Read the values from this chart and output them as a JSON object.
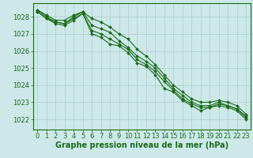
{
  "background_color": "#cce8e8",
  "grid_color": "#aacccc",
  "line_color": "#1a6b1a",
  "marker_color": "#1a6b1a",
  "xlabel": "Graphe pression niveau de la mer (hPa)",
  "xlabel_fontsize": 7,
  "tick_fontsize": 6,
  "ylim": [
    1021.4,
    1028.8
  ],
  "xlim": [
    -0.5,
    23.5
  ],
  "yticks": [
    1022,
    1023,
    1024,
    1025,
    1026,
    1027,
    1028
  ],
  "xticks": [
    0,
    1,
    2,
    3,
    4,
    5,
    6,
    7,
    8,
    9,
    10,
    11,
    12,
    13,
    14,
    15,
    16,
    17,
    18,
    19,
    20,
    21,
    22,
    23
  ],
  "series": [
    [
      1028.3,
      1027.9,
      1027.6,
      1027.5,
      1027.8,
      1028.2,
      1027.0,
      1026.8,
      1026.4,
      1026.3,
      1025.9,
      1025.3,
      1025.1,
      1024.6,
      1023.8,
      1023.6,
      1023.1,
      1022.8,
      1022.5,
      1022.7,
      1022.8,
      1022.7,
      1022.5,
      1022.0
    ],
    [
      1028.3,
      1027.9,
      1027.7,
      1027.6,
      1027.9,
      1028.2,
      1027.2,
      1027.0,
      1026.7,
      1026.4,
      1026.1,
      1025.5,
      1025.2,
      1024.8,
      1024.2,
      1023.7,
      1023.2,
      1022.9,
      1022.7,
      1022.7,
      1022.9,
      1022.8,
      1022.6,
      1022.1
    ],
    [
      1028.4,
      1028.0,
      1027.7,
      1027.6,
      1028.0,
      1028.3,
      1027.5,
      1027.3,
      1027.1,
      1026.6,
      1026.2,
      1025.7,
      1025.4,
      1025.0,
      1024.4,
      1023.8,
      1023.4,
      1023.0,
      1022.8,
      1022.8,
      1023.0,
      1022.8,
      1022.6,
      1022.2
    ],
    [
      1028.4,
      1028.1,
      1027.8,
      1027.8,
      1028.1,
      1028.3,
      1027.9,
      1027.7,
      1027.4,
      1027.0,
      1026.7,
      1026.1,
      1025.7,
      1025.2,
      1024.6,
      1024.0,
      1023.6,
      1023.2,
      1023.0,
      1023.0,
      1023.1,
      1023.0,
      1022.8,
      1022.3
    ]
  ]
}
